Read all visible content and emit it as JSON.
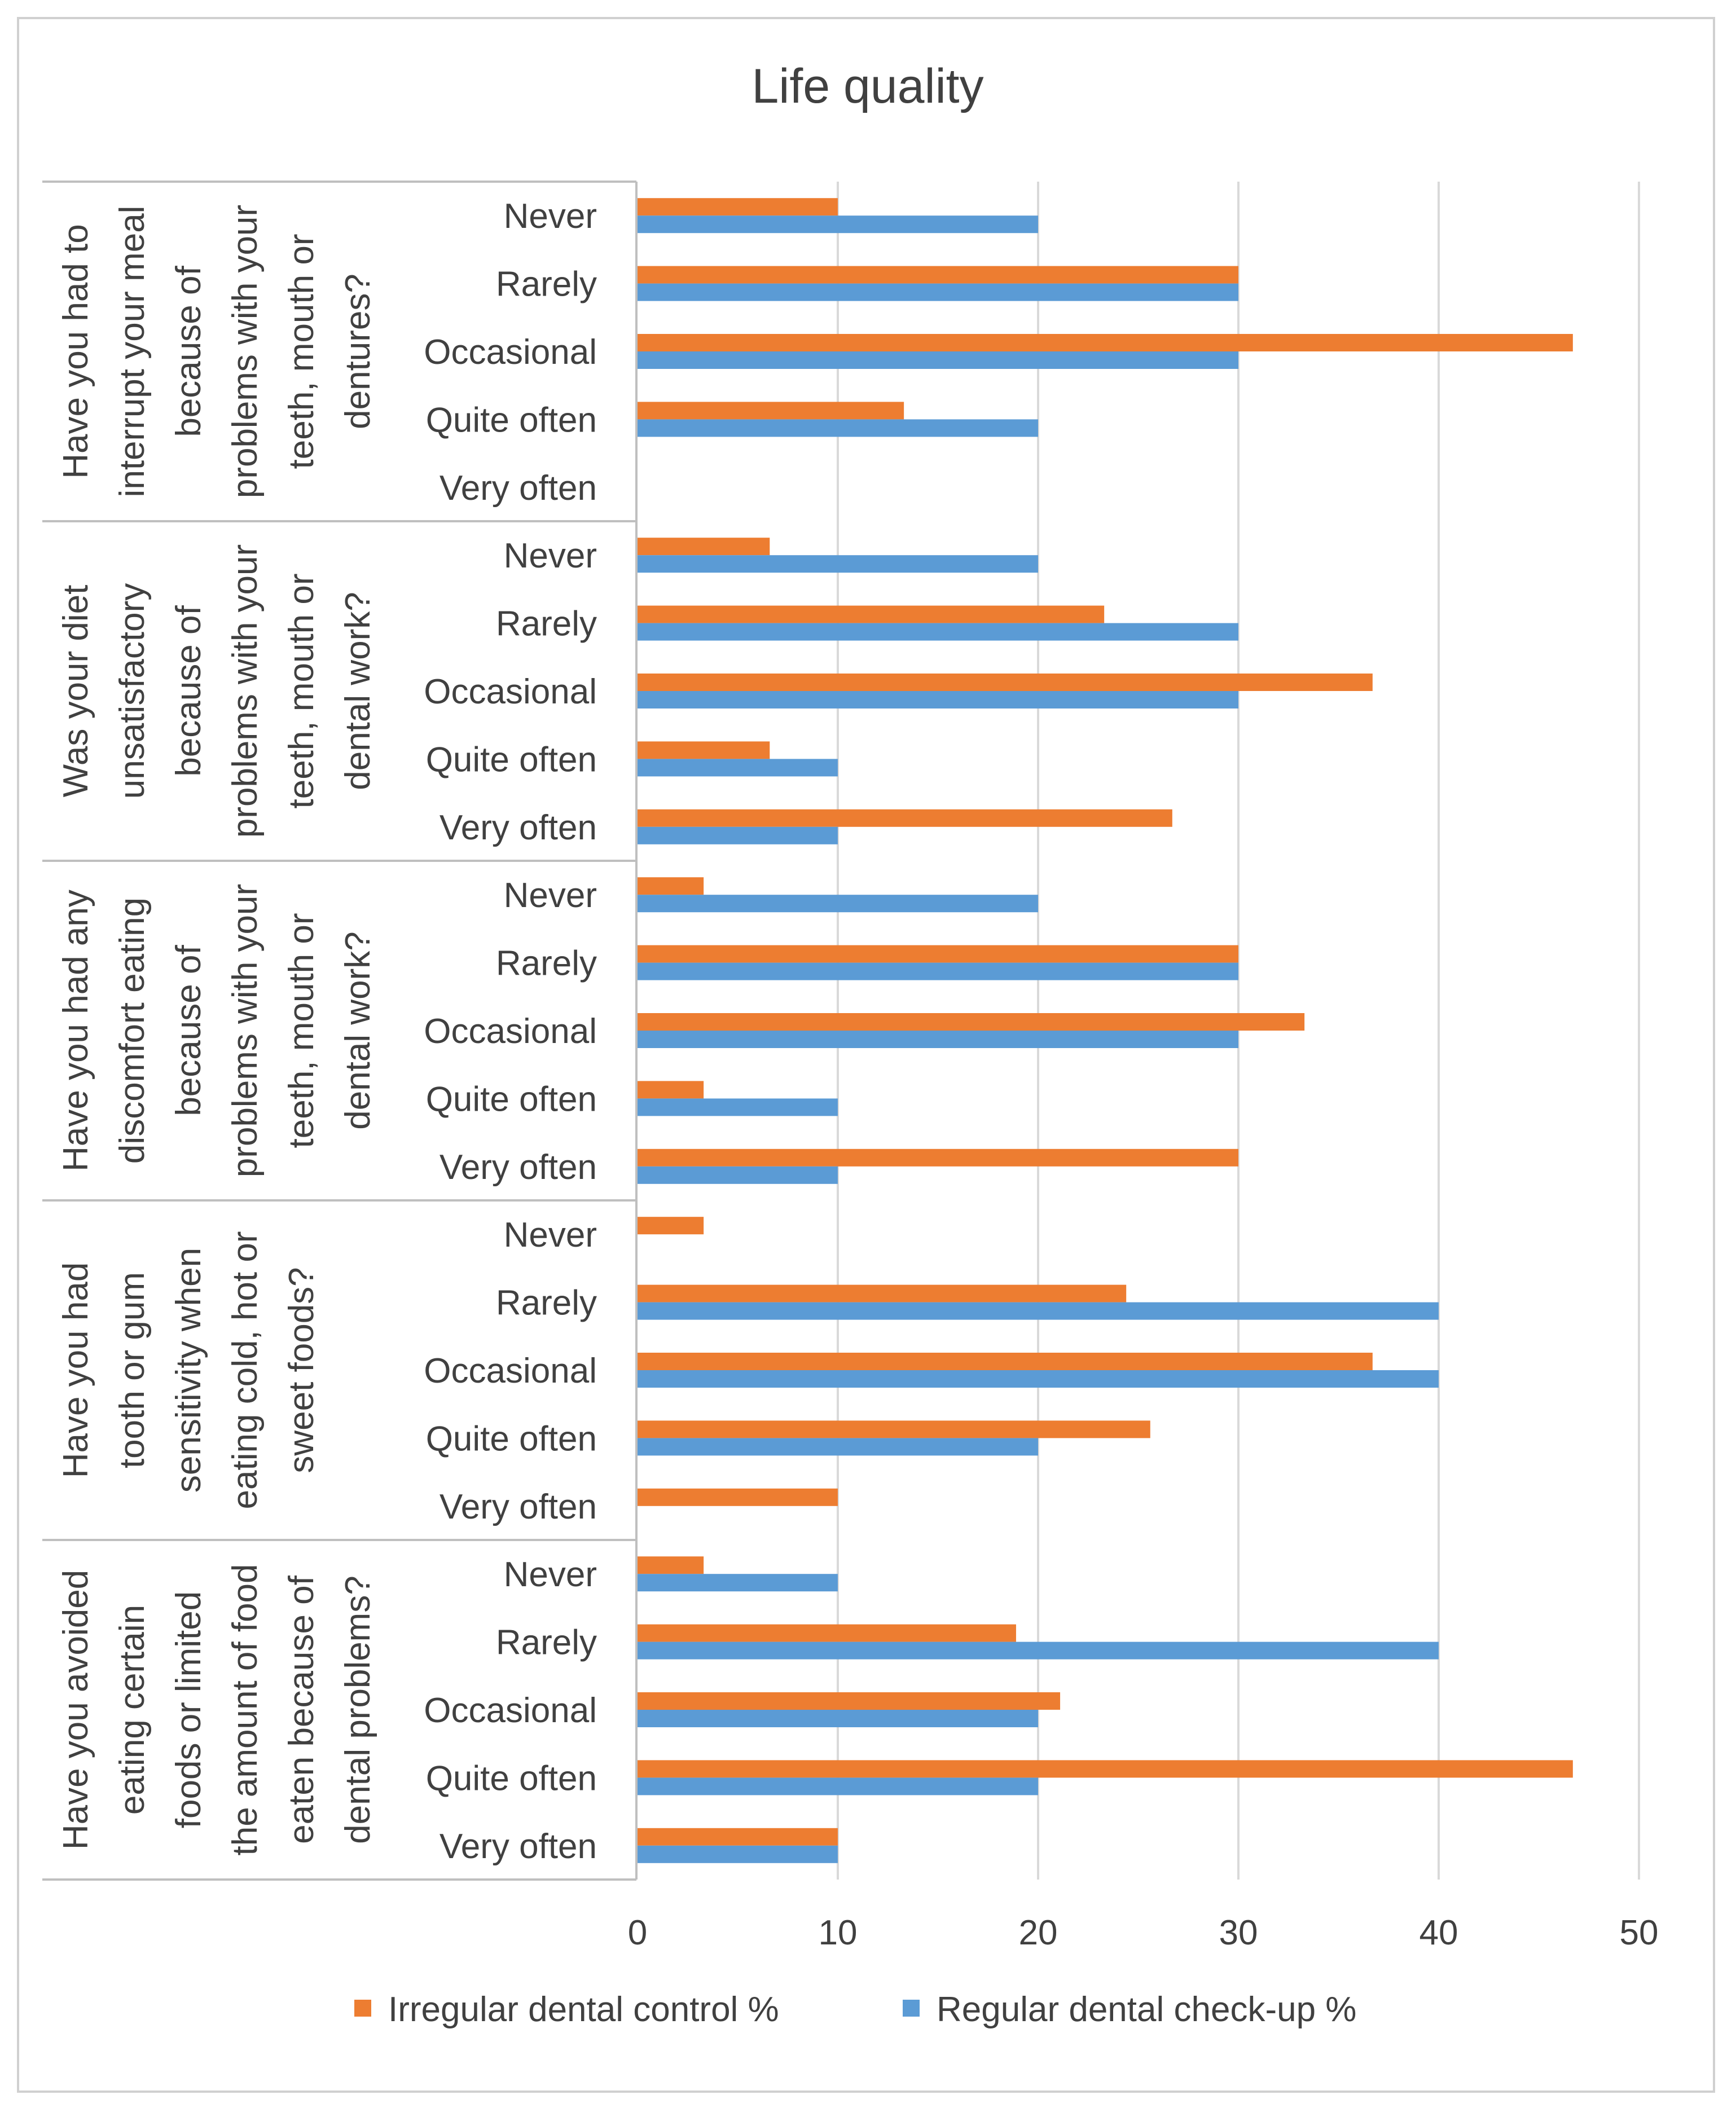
{
  "chart_data": {
    "type": "bar",
    "orientation": "horizontal",
    "title": "Life quality",
    "xlim": [
      0,
      50
    ],
    "xticks": [
      0,
      10,
      20,
      30,
      40,
      50
    ],
    "grid": true,
    "legend_position": "bottom",
    "colors": {
      "irregular": "#ED7D31",
      "regular": "#5B9BD5"
    },
    "series": [
      {
        "key": "irregular",
        "name": "Irregular dental control %"
      },
      {
        "key": "regular",
        "name": "Regular dental check-up %"
      }
    ],
    "answers": [
      "Never",
      "Rarely",
      "Occasional",
      "Quite often",
      "Very often"
    ],
    "groups": [
      {
        "question": "Have you had to interrupt your meal because of problems with your teeth, mouth or dentures?",
        "label_lines": [
          "Have you had to",
          "interrupt your meal",
          "because of",
          "problems with your",
          "teeth, mouth or",
          "dentures?"
        ],
        "irregular": [
          10,
          30,
          46.7,
          13.3,
          0
        ],
        "regular": [
          20,
          30,
          30,
          20,
          0
        ]
      },
      {
        "question": "Was your diet unsatisfactory because of problems with your teeth, mouth or dental work?",
        "label_lines": [
          "Was your diet",
          "unsatisfactory",
          "because of",
          "problems with your",
          "teeth, mouth or",
          "dental work?"
        ],
        "irregular": [
          6.6,
          23.3,
          36.7,
          6.6,
          26.7
        ],
        "regular": [
          20,
          30,
          30,
          10,
          10
        ]
      },
      {
        "question": "Have you had any discomfort eating because of problems with your teeth, mouth or dental work?",
        "label_lines": [
          "Have you had any",
          "discomfort eating",
          "because of",
          "problems with your",
          "teeth, mouth or",
          "dental work?"
        ],
        "irregular": [
          3.3,
          30,
          33.3,
          3.3,
          30
        ],
        "regular": [
          20,
          30,
          30,
          10,
          10
        ]
      },
      {
        "question": "Have you had tooth or gum sensitivity when eating cold, hot or sweet foods?",
        "label_lines": [
          "Have you had",
          "tooth or gum",
          "sensitivity when",
          "eating cold, hot or",
          "sweet foods?"
        ],
        "irregular": [
          3.3,
          24.4,
          36.7,
          25.6,
          10
        ],
        "regular": [
          0,
          40,
          40,
          20,
          0
        ]
      },
      {
        "question": "Have you avoided eating certain foods or limited the amount of food eaten because of dental problems?",
        "label_lines": [
          "Have you avoided",
          "eating certain",
          "foods or limited",
          "the amount of food",
          "eaten because of",
          "dental problems?"
        ],
        "irregular": [
          3.3,
          18.9,
          21.1,
          46.7,
          10
        ],
        "regular": [
          10,
          40,
          20,
          20,
          10
        ]
      }
    ]
  }
}
